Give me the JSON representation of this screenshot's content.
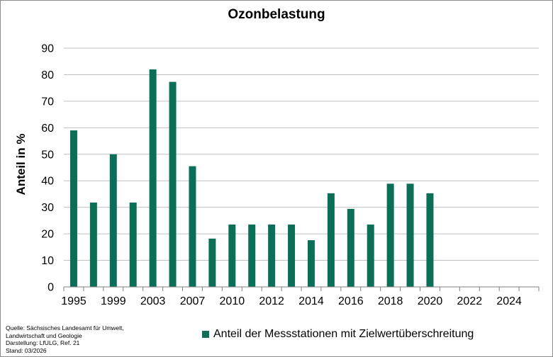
{
  "chart_data": {
    "type": "bar",
    "title": "Ozonbelastung",
    "ylabel": "Anteil in %",
    "xlabel": "",
    "ylim": [
      0,
      90
    ],
    "yticks": [
      0,
      10,
      20,
      30,
      40,
      50,
      60,
      70,
      80,
      90
    ],
    "xticks": [
      "1995",
      "1999",
      "2003",
      "2007",
      "2010",
      "2012",
      "2014",
      "2016",
      "2018",
      "2020",
      "2022",
      "2024"
    ],
    "categories": [
      "1995",
      "1997",
      "1999",
      "2001",
      "2003",
      "2005",
      "2007",
      "2009",
      "2010",
      "2011",
      "2012",
      "2013",
      "2014",
      "2015",
      "2016",
      "2017",
      "2018",
      "2019",
      "2020"
    ],
    "series": [
      {
        "name": "Anteil der Messstationen mit Zielwertüberschreitung",
        "values": [
          59,
          31.8,
          50,
          31.8,
          82,
          77.3,
          45.5,
          18.2,
          23.5,
          23.5,
          23.5,
          23.5,
          17.6,
          35.3,
          29.4,
          23.5,
          38.9,
          38.9,
          35.3
        ]
      }
    ],
    "bar_color": "#0b6e57",
    "grid": true,
    "legend_position": "bottom"
  },
  "source": {
    "line1": "Quelle: Sächsisches Landesamt für Umwelt,",
    "line2": "Landwirtschaft und Geologie",
    "line3": "Darstellung: LfULG, Ref. 21",
    "line4": "Stand: 03/2026"
  }
}
